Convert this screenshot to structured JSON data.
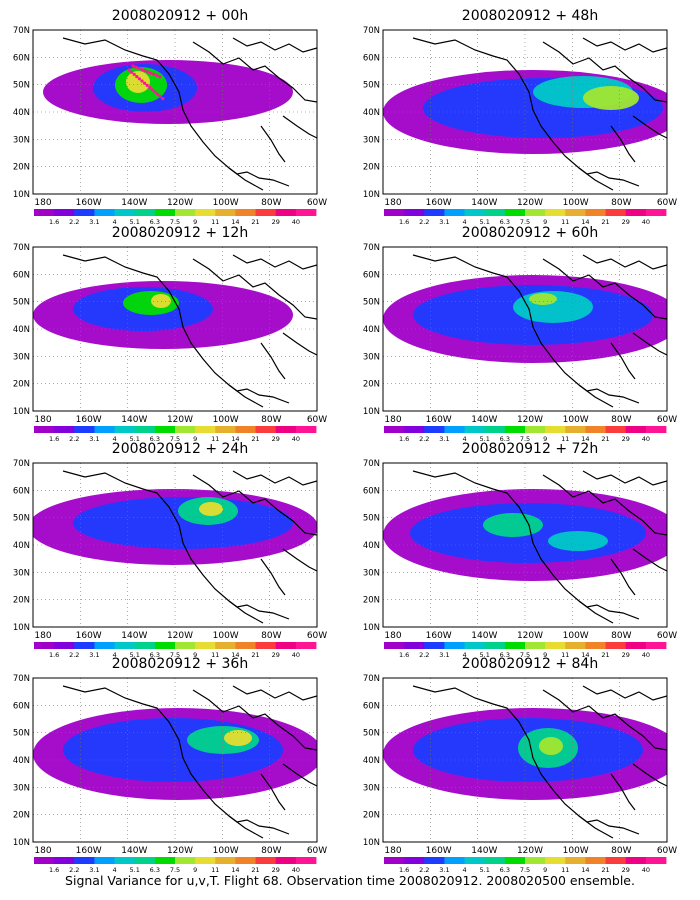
{
  "panels": [
    {
      "title": "2008020912 + 00h"
    },
    {
      "title": "2008020912 + 48h"
    },
    {
      "title": "2008020912 + 12h"
    },
    {
      "title": "2008020912 + 60h"
    },
    {
      "title": "2008020912 + 24h"
    },
    {
      "title": "2008020912 + 72h"
    },
    {
      "title": "2008020912 + 36h"
    },
    {
      "title": "2008020912 + 84h"
    }
  ],
  "lat_labels": [
    "70N",
    "60N",
    "50N",
    "40N",
    "30N",
    "20N",
    "10N"
  ],
  "lon_labels": [
    "180",
    "160W",
    "140W",
    "120W",
    "100W",
    "80W",
    "60W"
  ],
  "colorbar": {
    "labels": [
      "1.6",
      "2.2",
      "3.1",
      "4",
      "5.1",
      "6.3",
      "7.5",
      "9",
      "11",
      "14",
      "21",
      "29",
      "40"
    ],
    "colors": [
      "#a000c8",
      "#8200dc",
      "#1e3cff",
      "#00a0ff",
      "#00c8c8",
      "#00d28c",
      "#00dc00",
      "#a0e632",
      "#e6dc32",
      "#e6af2d",
      "#f08228",
      "#fa3c3c",
      "#f00082",
      "#ff1493"
    ]
  },
  "footer": "Signal Variance for u,v,T. Flight 68. Observation time 2008020912. 2008020500 ensemble."
}
